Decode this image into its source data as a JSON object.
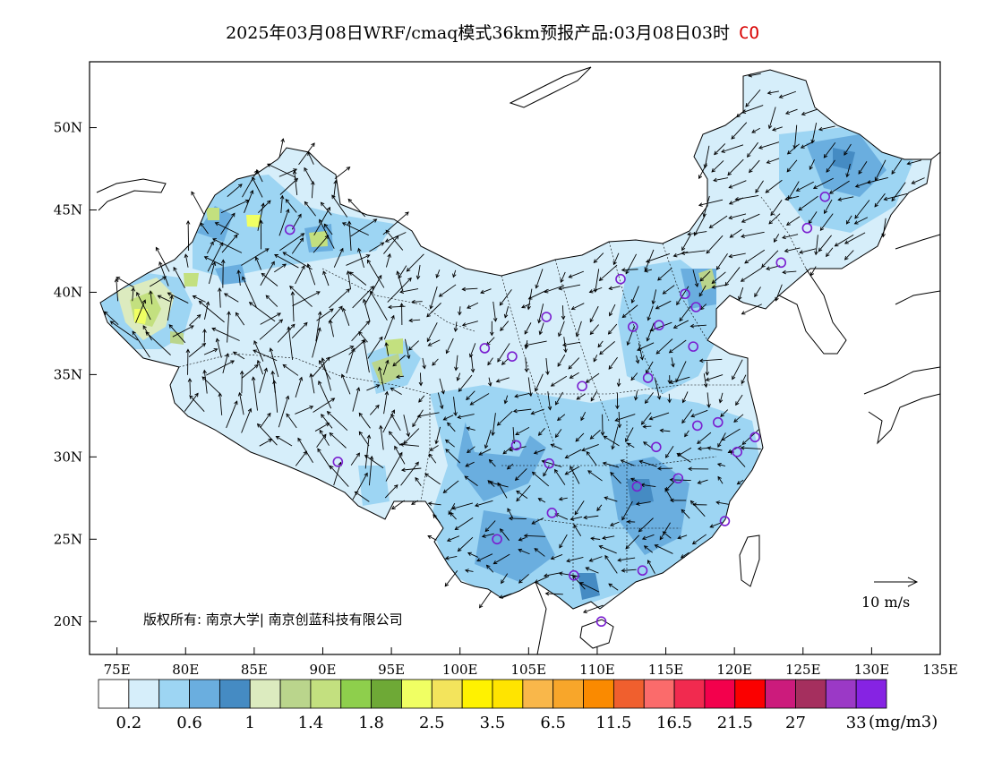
{
  "title": {
    "text": "2025年03月08日WRF/cmaq模式36km预报产品:03月08日03时",
    "species": "CO"
  },
  "map": {
    "lat_ticks": [
      "50N",
      "45N",
      "40N",
      "35N",
      "30N",
      "25N",
      "20N"
    ],
    "lon_ticks": [
      "75E",
      "80E",
      "85E",
      "90E",
      "95E",
      "100E",
      "105E",
      "110E",
      "115E",
      "120E",
      "125E",
      "130E",
      "135E"
    ],
    "extent": {
      "lon_min": 73,
      "lon_max": 135,
      "lat_min": 18,
      "lat_max": 54
    },
    "wind_reference": {
      "label": "10 m/s"
    },
    "copyright": "版权所有: 南京大学| 南京创蓝科技有限公司",
    "stations": [
      {
        "lon": 87.6,
        "lat": 43.8
      },
      {
        "lon": 91.1,
        "lat": 29.7
      },
      {
        "lon": 101.8,
        "lat": 36.6
      },
      {
        "lon": 103.8,
        "lat": 36.1
      },
      {
        "lon": 106.3,
        "lat": 38.5
      },
      {
        "lon": 111.7,
        "lat": 40.8
      },
      {
        "lon": 112.6,
        "lat": 37.9
      },
      {
        "lon": 114.5,
        "lat": 38.0
      },
      {
        "lon": 116.4,
        "lat": 39.9
      },
      {
        "lon": 117.2,
        "lat": 39.1
      },
      {
        "lon": 117.0,
        "lat": 36.7
      },
      {
        "lon": 113.7,
        "lat": 34.8
      },
      {
        "lon": 108.9,
        "lat": 34.3
      },
      {
        "lon": 104.1,
        "lat": 30.7
      },
      {
        "lon": 106.5,
        "lat": 29.6
      },
      {
        "lon": 114.3,
        "lat": 30.6
      },
      {
        "lon": 117.3,
        "lat": 31.9
      },
      {
        "lon": 118.8,
        "lat": 32.1
      },
      {
        "lon": 120.2,
        "lat": 30.3
      },
      {
        "lon": 121.5,
        "lat": 31.2
      },
      {
        "lon": 115.9,
        "lat": 28.7
      },
      {
        "lon": 112.9,
        "lat": 28.2
      },
      {
        "lon": 106.7,
        "lat": 26.6
      },
      {
        "lon": 102.7,
        "lat": 25.0
      },
      {
        "lon": 108.3,
        "lat": 22.8
      },
      {
        "lon": 113.3,
        "lat": 23.1
      },
      {
        "lon": 119.3,
        "lat": 26.1
      },
      {
        "lon": 110.3,
        "lat": 20.0
      },
      {
        "lon": 123.4,
        "lat": 41.8
      },
      {
        "lon": 125.3,
        "lat": 43.9
      },
      {
        "lon": 126.6,
        "lat": 45.8
      }
    ]
  },
  "legend": {
    "colors": [
      "#ffffff",
      "#d6eefa",
      "#9dd5f3",
      "#6aaedf",
      "#458bc3",
      "#dcebbf",
      "#bad58c",
      "#c3e07f",
      "#8ecf4c",
      "#6ea936",
      "#f0ff63",
      "#f3e45c",
      "#fff200",
      "#ffe400",
      "#f9b74a",
      "#f8a62a",
      "#fa8a00",
      "#f05f2e",
      "#fb6b6b",
      "#f12a4f",
      "#f3004c",
      "#fb0000",
      "#cc1b7c",
      "#a52f5e",
      "#9b39c6",
      "#8623e3"
    ],
    "labels": [
      "0.2",
      "0.6",
      "1",
      "1.4",
      "1.8",
      "2.5",
      "3.5",
      "6.5",
      "11.5",
      "16.5",
      "21.5",
      "27",
      "33"
    ],
    "unit": "(mg/m3)"
  }
}
